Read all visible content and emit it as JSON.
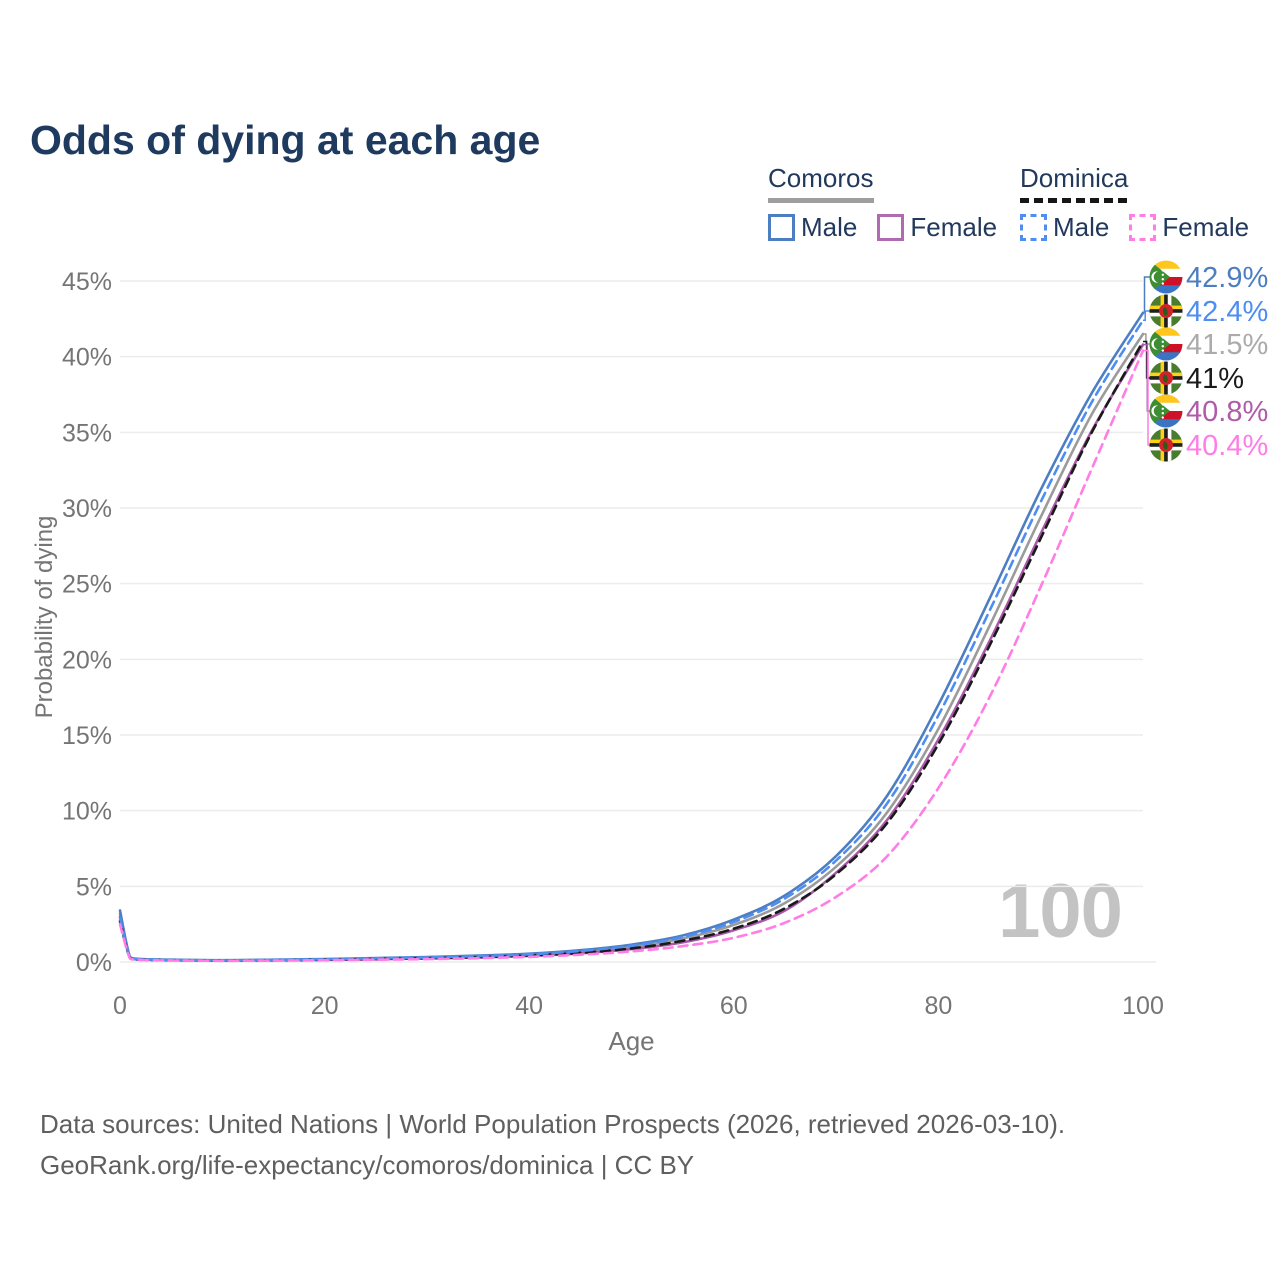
{
  "title": "Odds of dying at each age",
  "watermark": "100",
  "legend": {
    "groups": [
      {
        "id": "comoros",
        "label": "Comoros",
        "line_style": "solid",
        "underline_color": "#9e9e9e",
        "items": [
          {
            "label": "Male",
            "color": "#4d7ec2"
          },
          {
            "label": "Female",
            "color": "#b06ab0"
          }
        ]
      },
      {
        "id": "dominica",
        "label": "Dominica",
        "line_style": "dashed",
        "underline_color": "#161616",
        "items": [
          {
            "label": "Male",
            "color": "#4e8df2"
          },
          {
            "label": "Female",
            "color": "#ff7de4"
          }
        ]
      }
    ]
  },
  "footer": {
    "line1": "Data sources: United Nations | World Population Prospects (2026, retrieved 2026-03-10).",
    "line2": "GeoRank.org/life-expectancy/comoros/dominica | CC BY"
  },
  "chart_data": {
    "type": "line",
    "title": "Odds of dying at each age",
    "xlabel": "Age",
    "ylabel": "Probability of dying",
    "xlim": [
      0,
      100
    ],
    "ylim_percent": [
      0,
      45
    ],
    "grid": "horizontal",
    "legend_position": "top-right",
    "x_tick_labels": [
      "0",
      "20",
      "40",
      "60",
      "80",
      "100"
    ],
    "x_tick_values": [
      0,
      20,
      40,
      60,
      80,
      100
    ],
    "y_tick_labels": [
      "0%",
      "5%",
      "10%",
      "15%",
      "20%",
      "25%",
      "30%",
      "35%",
      "40%",
      "45%"
    ],
    "y_tick_values": [
      0,
      5,
      10,
      15,
      20,
      25,
      30,
      35,
      40,
      45
    ],
    "ages": [
      0,
      1,
      2,
      5,
      10,
      15,
      20,
      25,
      30,
      35,
      40,
      45,
      50,
      55,
      60,
      65,
      70,
      75,
      80,
      85,
      90,
      95,
      100
    ],
    "series": [
      {
        "name": "Comoros Male",
        "country": "comoros",
        "sex": "male",
        "style": "solid",
        "color": "#4d7ec2",
        "label_color": "#4d7ec2",
        "end_label": "42.9%",
        "end_value_percent": 42.9,
        "values_percent": [
          3.4,
          0.3,
          0.2,
          0.15,
          0.12,
          0.15,
          0.2,
          0.26,
          0.33,
          0.42,
          0.55,
          0.78,
          1.15,
          1.75,
          2.8,
          4.4,
          7.0,
          11.0,
          17.0,
          24.0,
          31.2,
          37.6,
          42.9
        ]
      },
      {
        "name": "Dominica Male",
        "country": "dominica",
        "sex": "male",
        "style": "dashed",
        "color": "#4e8df2",
        "label_color": "#4e8df2",
        "end_label": "42.4%",
        "end_value_percent": 42.4,
        "values_percent": [
          2.9,
          0.25,
          0.18,
          0.13,
          0.1,
          0.13,
          0.18,
          0.24,
          0.3,
          0.39,
          0.51,
          0.73,
          1.08,
          1.65,
          2.65,
          4.2,
          6.7,
          10.5,
          16.3,
          23.2,
          30.4,
          37.0,
          42.4
        ]
      },
      {
        "name": "Comoros Both sexes",
        "country": "comoros",
        "sex": "both",
        "style": "solid",
        "color": "#9b9b9b",
        "label_color": "#ababab",
        "end_label": "41.5%",
        "end_value_percent": 41.5,
        "values_percent": [
          3.2,
          0.28,
          0.19,
          0.14,
          0.11,
          0.13,
          0.17,
          0.22,
          0.28,
          0.36,
          0.48,
          0.68,
          1.0,
          1.55,
          2.45,
          3.9,
          6.3,
          9.9,
          15.4,
          22.2,
          29.4,
          36.2,
          41.5
        ]
      },
      {
        "name": "Dominica Both sexes",
        "country": "dominica",
        "sex": "both",
        "style": "dashed",
        "color": "#1a1a1a",
        "label_color": "#1a1a1a",
        "end_label": "41%",
        "end_value_percent": 41.0,
        "values_percent": [
          2.7,
          0.23,
          0.16,
          0.12,
          0.09,
          0.11,
          0.15,
          0.2,
          0.25,
          0.32,
          0.43,
          0.61,
          0.9,
          1.4,
          2.2,
          3.55,
          5.8,
          9.2,
          14.4,
          20.9,
          28.0,
          35.0,
          41.0
        ]
      },
      {
        "name": "Comoros Female",
        "country": "comoros",
        "sex": "female",
        "style": "solid",
        "color": "#a85aa8",
        "label_color": "#b05ba8",
        "end_label": "40.8%",
        "end_value_percent": 40.8,
        "values_percent": [
          3.0,
          0.26,
          0.17,
          0.12,
          0.1,
          0.11,
          0.14,
          0.18,
          0.23,
          0.3,
          0.4,
          0.57,
          0.85,
          1.3,
          2.1,
          3.4,
          5.9,
          9.4,
          14.7,
          21.2,
          28.3,
          35.1,
          40.8
        ]
      },
      {
        "name": "Dominica Female",
        "country": "dominica",
        "sex": "female",
        "style": "dashed",
        "color": "#ff7de4",
        "label_color": "#ff7de4",
        "end_label": "40.4%",
        "end_value_percent": 40.4,
        "values_percent": [
          2.5,
          0.21,
          0.14,
          0.1,
          0.08,
          0.09,
          0.12,
          0.15,
          0.19,
          0.25,
          0.34,
          0.48,
          0.7,
          1.05,
          1.6,
          2.6,
          4.3,
          7.0,
          11.5,
          17.5,
          24.8,
          32.6,
          40.4
        ]
      }
    ]
  }
}
